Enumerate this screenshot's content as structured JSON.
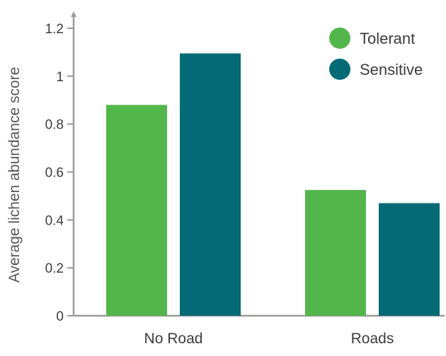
{
  "chart_data": {
    "type": "bar",
    "title": "",
    "xlabel": "",
    "ylabel": "Average lichen abundance score",
    "categories": [
      "No Road",
      "Roads"
    ],
    "series": [
      {
        "name": "Tolerant",
        "color": "#52b64b",
        "values": [
          0.88,
          0.525
        ]
      },
      {
        "name": "Sensitive",
        "color": "#046a75",
        "values": [
          1.095,
          0.47
        ]
      }
    ],
    "ylim": [
      0,
      1.2
    ],
    "yticks": [
      0,
      0.2,
      0.4,
      0.6,
      0.8,
      1,
      1.2
    ],
    "grid": false,
    "legend": "top-right",
    "axis_color": "#9a9a9a"
  }
}
